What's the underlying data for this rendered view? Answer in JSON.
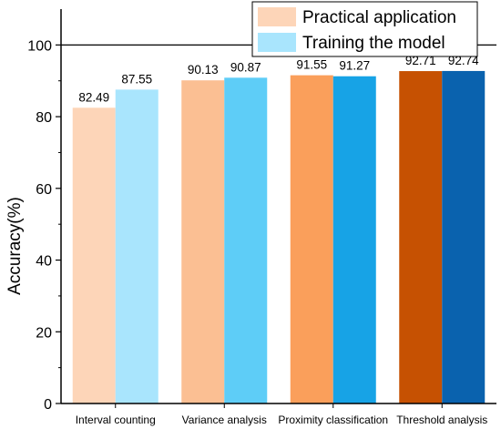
{
  "chart_data": {
    "type": "bar",
    "title": "",
    "xlabel": "",
    "ylabel": "Accuracy(%)",
    "ylim": [
      0,
      110
    ],
    "yticks": [
      0,
      20,
      40,
      60,
      80,
      100
    ],
    "categories": [
      "Interval counting",
      "Variance analysis",
      "Proximity classification",
      "Threshold analysis"
    ],
    "series": [
      {
        "name": "Practical application",
        "values": [
          82.49,
          90.13,
          91.55,
          92.71
        ],
        "colors": [
          "#FDD5B8",
          "#FBBF93",
          "#FA9F5B",
          "#C65102"
        ],
        "labels": [
          "82.49",
          "90.13",
          "91.55",
          "92.71"
        ]
      },
      {
        "name": "Training the model",
        "values": [
          87.55,
          90.87,
          91.27,
          92.74
        ],
        "colors": [
          "#A9E5FD",
          "#5ECDF7",
          "#17A3E6",
          "#0A62AE"
        ],
        "labels": [
          "87.55",
          "90.87",
          "91.27",
          "92.74"
        ]
      }
    ],
    "legend": {
      "placement": "top-right",
      "swatch_colors": [
        "#FDD5B8",
        "#A9E5FD"
      ]
    },
    "grid": false
  }
}
